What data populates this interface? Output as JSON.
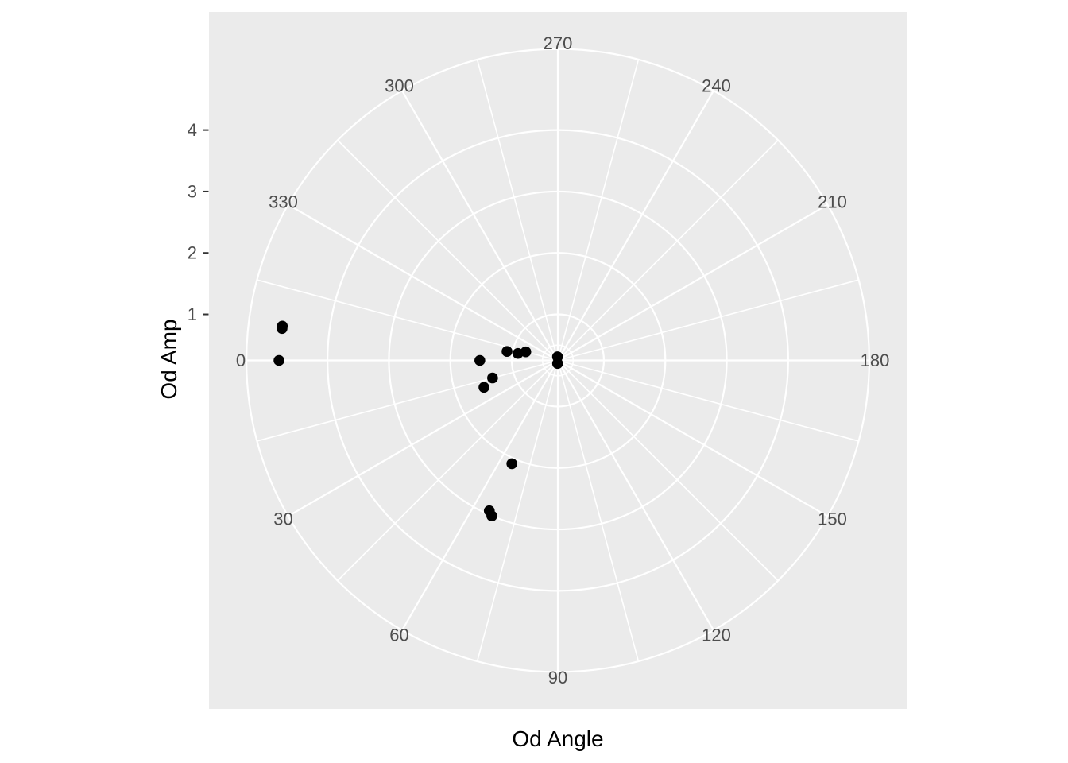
{
  "chart_data": {
    "type": "scatter",
    "coordinate_system": "polar",
    "title": "",
    "xlabel": "Od Angle",
    "ylabel": "Od Amp",
    "grid": true,
    "legend": false,
    "theta_axis": {
      "labels": [
        "0",
        "30",
        "60",
        "90",
        "120",
        "150",
        "180",
        "210",
        "240",
        "270",
        "300",
        "330"
      ],
      "label_values_deg": [
        0,
        30,
        60,
        90,
        120,
        150,
        180,
        210,
        240,
        270,
        300,
        330
      ],
      "major_step_deg": 30,
      "minor_step_deg": 15,
      "orientation": "0 at left/west, 90 at bottom, 180 at right, 270 at top; angle increases from west toward south"
    },
    "r_axis": {
      "tick_labels": [
        "1",
        "2",
        "3",
        "4"
      ],
      "tick_values": [
        1,
        2,
        3,
        4
      ],
      "grid_circles_major": [
        1,
        2,
        3,
        4
      ],
      "grid_circles_minor": [
        0.5
      ],
      "center_value": 0.25,
      "outer_ring_value": 5.32
    },
    "points": [
      {
        "angle": 352.9,
        "amp": 4.77
      },
      {
        "angle": 353.4,
        "amp": 4.77
      },
      {
        "angle": 0,
        "amp": 4.79
      },
      {
        "angle": 0,
        "amp": 1.52
      },
      {
        "angle": 15,
        "amp": 1.35
      },
      {
        "angle": 20,
        "amp": 1.53
      },
      {
        "angle": 345,
        "amp": 0.79
      },
      {
        "angle": 350,
        "amp": 0.91
      },
      {
        "angle": 350,
        "amp": 1.09
      },
      {
        "angle": 66,
        "amp": 2.09
      },
      {
        "angle": 65.5,
        "amp": 2.94
      },
      {
        "angle": 67,
        "amp": 3.0
      },
      {
        "angle": 85,
        "amp": 0.3
      },
      {
        "angle": 275,
        "amp": 0.31
      }
    ],
    "colors": {
      "page_bg": "#FFFFFF",
      "panel_bg": "#EBEBEB",
      "grid": "#FFFFFF",
      "point": "#000000",
      "axis_text": "#4D4D4D",
      "tick_mark": "#333333",
      "axis_title": "#000000"
    }
  }
}
